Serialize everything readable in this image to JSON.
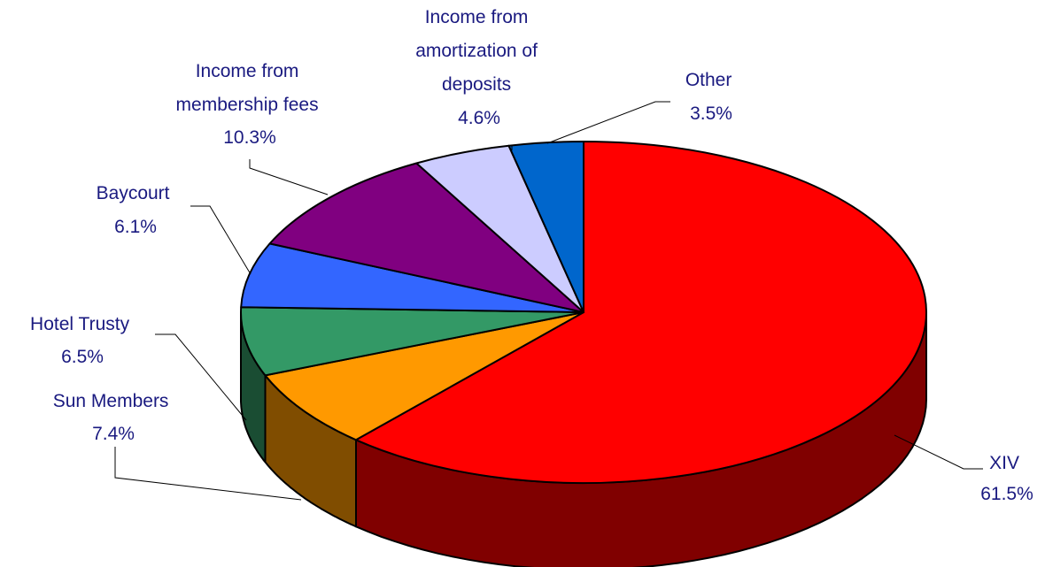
{
  "chart_data": {
    "type": "pie",
    "title": "",
    "style": "3d",
    "slices": [
      {
        "name": "XIV",
        "value": 61.5,
        "label": "61.5%",
        "color": "#ff0000",
        "side_color": "#800000"
      },
      {
        "name": "Sun Members",
        "value": 7.4,
        "label": "7.4%",
        "color": "#ff9900",
        "side_color": "#804d00"
      },
      {
        "name": "Hotel Trusty",
        "value": 6.5,
        "label": "6.5%",
        "color": "#339966",
        "side_color": "#1a4d33"
      },
      {
        "name": "Baycourt",
        "value": 6.1,
        "label": "6.1%",
        "color": "#3366ff",
        "side_color": "#1a3380"
      },
      {
        "name": "Income from membership fees",
        "value": 10.3,
        "label": "10.3%",
        "color": "#800080",
        "side_color": "#400040"
      },
      {
        "name": "Income from amortization of deposits",
        "value": 4.6,
        "label": "4.6%",
        "color": "#ccccff",
        "side_color": "#666680"
      },
      {
        "name": "Other",
        "value": 3.5,
        "label": "3.5%",
        "color": "#0066cc",
        "side_color": "#003366"
      }
    ]
  },
  "labels": {
    "xiv": {
      "lines": [
        "XIV"
      ],
      "pct": "61.5%"
    },
    "sun_members": {
      "lines": [
        "Sun Members"
      ],
      "pct": "7.4%"
    },
    "hotel_trusty": {
      "lines": [
        "Hotel Trusty"
      ],
      "pct": "6.5%"
    },
    "baycourt": {
      "lines": [
        "Baycourt"
      ],
      "pct": "6.1%"
    },
    "membership": {
      "lines": [
        "Income from",
        "membership fees"
      ],
      "pct": "10.3%"
    },
    "amortization": {
      "lines": [
        "Income from",
        "amortization of",
        "deposits"
      ],
      "pct": "4.6%"
    },
    "other": {
      "lines": [
        "Other"
      ],
      "pct": "3.5%"
    }
  }
}
